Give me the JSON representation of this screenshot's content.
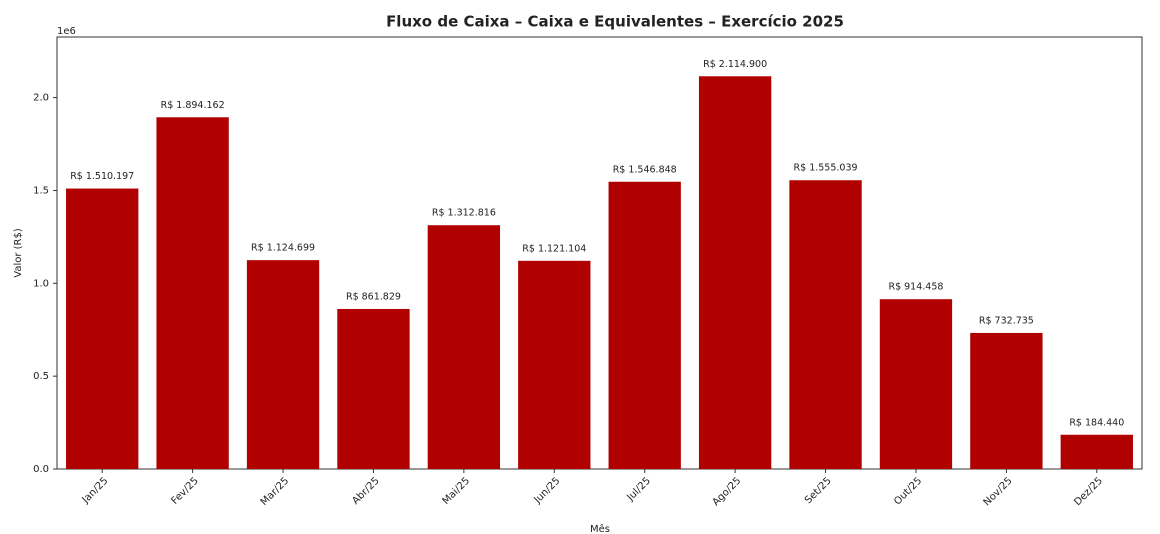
{
  "chart_data": {
    "type": "bar",
    "title": "Fluxo de Caixa – Caixa e Equivalentes – Exercício 2025",
    "x_label": "Mês",
    "y_label": "Valor (R$)",
    "y_offset_label": "1e6",
    "categories": [
      "Jan/25",
      "Fev/25",
      "Mar/25",
      "Abr/25",
      "Mai/25",
      "Jun/25",
      "Jul/25",
      "Ago/25",
      "Set/25",
      "Out/25",
      "Nov/25",
      "Dez/25"
    ],
    "values": [
      1510197,
      1894162,
      1124699,
      861829,
      1312816,
      1121104,
      1546848,
      2114900,
      1555039,
      914458,
      732735,
      184440
    ],
    "value_labels": [
      "R$ 1.510.197",
      "R$ 1.894.162",
      "R$ 1.124.699",
      "R$ 861.829",
      "R$ 1.312.816",
      "R$ 1.121.104",
      "R$ 1.546.848",
      "R$ 2.114.900",
      "R$ 1.555.039",
      "R$ 914.458",
      "R$ 732.735",
      "R$ 184.440"
    ],
    "color": "#b00000",
    "ylim": [
      0,
      2326390
    ],
    "yticks": [
      {
        "value": 0,
        "label": "0.0"
      },
      {
        "value": 500000,
        "label": "0.5"
      },
      {
        "value": 1000000,
        "label": "1.0"
      },
      {
        "value": 1500000,
        "label": "1.5"
      },
      {
        "value": 2000000,
        "label": "2.0"
      }
    ],
    "grid": false
  }
}
